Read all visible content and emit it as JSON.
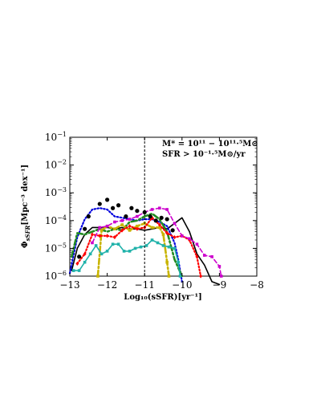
{
  "chart_data": {
    "type": "line",
    "xlabel": "Log₁₀(sSFR)[yr⁻¹]",
    "ylabel": "Φsfr[Mpc⁻³ dex⁻¹]",
    "ylabel_main": "Φ",
    "ylabel_sub": "sSFR",
    "ylabel_rest": "[Mpc⁻³ dex⁻¹]",
    "xlim": [
      -13,
      -8
    ],
    "ylim_log10": [
      -6,
      -1
    ],
    "y_scale": "log",
    "x_ticks": [
      "−13",
      "−12",
      "−11",
      "−10",
      "−9",
      "−8"
    ],
    "x_tick_values": [
      -13,
      -12,
      -11,
      -10,
      -9,
      -8
    ],
    "y_ticks": [
      {
        "value": -6,
        "base": "10",
        "exp": "−6"
      },
      {
        "value": -5,
        "base": "10",
        "exp": "−5"
      },
      {
        "value": -4,
        "base": "10",
        "exp": "−4"
      },
      {
        "value": -3,
        "base": "10",
        "exp": "−3"
      },
      {
        "value": -2,
        "base": "10",
        "exp": "−2"
      },
      {
        "value": -1,
        "base": "10",
        "exp": "−1"
      }
    ],
    "vline_x": -11,
    "annotations": {
      "mass_range": "M* = 10¹¹ − 10¹¹·⁵M⊙",
      "sfr_cut": "SFR > 10⁻¹·⁵M⊙/yr"
    },
    "series": [
      {
        "color": "#000000",
        "style": "solid",
        "marker": "none",
        "x": [
          -12.95,
          -12.8,
          -12.6,
          -12.4,
          -12.2,
          -12.0,
          -11.8,
          -11.6,
          -11.4,
          -11.2,
          -11.0,
          -10.8,
          -10.6,
          -10.4,
          -10.2,
          -10.0,
          -9.8,
          -9.6,
          -9.4,
          -9.2,
          -9.0
        ],
        "log_y": [
          -5.8,
          -5.0,
          -4.5,
          -4.25,
          -4.25,
          -4.25,
          -4.3,
          -4.25,
          -4.3,
          -4.3,
          -4.35,
          -4.3,
          -4.25,
          -4.3,
          -4.1,
          -3.9,
          -4.4,
          -5.2,
          -5.6,
          -6.2,
          -6.3
        ]
      },
      {
        "color": "#0000dd",
        "style": "dotted",
        "marker": "none",
        "x": [
          -13.0,
          -12.8,
          -12.6,
          -12.4,
          -12.2,
          -12.0,
          -11.8,
          -11.6,
          -11.4,
          -11.2,
          -11.0,
          -10.8,
          -10.6,
          -10.4,
          -10.2,
          -10.1,
          -10.0
        ],
        "log_y": [
          -5.9,
          -4.6,
          -3.95,
          -3.6,
          -3.55,
          -3.6,
          -3.85,
          -3.9,
          -3.95,
          -4.0,
          -3.95,
          -3.95,
          -4.05,
          -4.2,
          -4.8,
          -5.4,
          -6.2
        ]
      },
      {
        "color": "#228b22",
        "style": "dashdot",
        "marker": "none",
        "x": [
          -12.95,
          -12.8,
          -12.6,
          -12.4,
          -12.2,
          -12.0,
          -11.8,
          -11.6,
          -11.4,
          -11.2,
          -11.0,
          -10.8,
          -10.6,
          -10.4,
          -10.2,
          -10.0
        ],
        "log_y": [
          -5.3,
          -4.45,
          -4.5,
          -4.4,
          -4.3,
          -4.4,
          -4.3,
          -4.35,
          -4.05,
          -4.0,
          -3.85,
          -3.75,
          -3.95,
          -4.4,
          -5.4,
          -6.0
        ]
      },
      {
        "color": "#c8b400",
        "style": "dashdot",
        "marker": "square",
        "x": [
          -12.25,
          -12.15,
          -12.0,
          -11.8,
          -11.6,
          -11.4,
          -11.2,
          -11.0,
          -10.8,
          -10.6,
          -10.5,
          -10.4,
          -10.35
        ],
        "log_y": [
          -6.0,
          -4.35,
          -4.2,
          -4.3,
          -4.15,
          -4.35,
          -4.2,
          -4.1,
          -4.25,
          -4.25,
          -4.5,
          -5.5,
          -6.0
        ]
      },
      {
        "color": "#ff0000",
        "style": "dotted",
        "marker": "diamond",
        "x": [
          -12.8,
          -12.6,
          -12.4,
          -12.2,
          -12.0,
          -11.8,
          -11.6,
          -11.4,
          -11.2,
          -11.0,
          -10.8,
          -10.6,
          -10.4,
          -10.2,
          -10.0,
          -9.8,
          -9.6,
          -9.5
        ],
        "log_y": [
          -5.55,
          -5.2,
          -4.5,
          -4.55,
          -4.55,
          -4.6,
          -4.35,
          -4.2,
          -4.3,
          -4.25,
          -3.9,
          -4.15,
          -4.45,
          -4.6,
          -4.55,
          -4.7,
          -5.3,
          -6.0
        ]
      },
      {
        "color": "#cc00cc",
        "style": "dashed",
        "marker": "square",
        "x": [
          -12.4,
          -12.2,
          -12.0,
          -11.8,
          -11.6,
          -11.4,
          -11.2,
          -11.0,
          -10.8,
          -10.6,
          -10.4,
          -10.2,
          -10.0,
          -9.8,
          -9.6,
          -9.4,
          -9.2,
          -9.0,
          -8.95
        ],
        "log_y": [
          -4.8,
          -4.25,
          -4.2,
          -4.05,
          -4.0,
          -3.95,
          -3.85,
          -3.7,
          -3.6,
          -3.55,
          -3.6,
          -4.1,
          -4.55,
          -4.65,
          -4.85,
          -5.25,
          -5.3,
          -5.65,
          -6.0
        ]
      },
      {
        "color": "#20b2aa",
        "style": "solid",
        "marker": "square",
        "x": [
          -12.9,
          -12.75,
          -12.6,
          -12.45,
          -12.3,
          -12.15,
          -12.0,
          -11.85,
          -11.7,
          -11.55,
          -11.4,
          -11.25,
          -11.1,
          -10.95,
          -10.8,
          -10.65,
          -10.5,
          -10.35,
          -10.2,
          -10.1,
          -10.05
        ],
        "log_y": [
          -5.8,
          -5.8,
          -5.5,
          -5.2,
          -4.9,
          -5.2,
          -5.1,
          -4.85,
          -4.85,
          -5.1,
          -5.1,
          -5.0,
          -4.95,
          -4.9,
          -4.7,
          -4.8,
          -4.9,
          -4.95,
          -5.0,
          -5.5,
          -6.0
        ]
      }
    ],
    "black_dots": {
      "color": "#000000",
      "x": [
        -12.75,
        -12.6,
        -12.5,
        -12.2,
        -12.0,
        -11.85,
        -11.7,
        -11.5,
        -11.35,
        -11.2,
        -11.0,
        -10.85,
        -10.7,
        -10.55,
        -10.4,
        -10.25
      ],
      "log_y": [
        -5.3,
        -4.3,
        -3.85,
        -3.4,
        -3.25,
        -3.55,
        -3.45,
        -3.85,
        -3.55,
        -3.65,
        -3.7,
        -3.85,
        -4.0,
        -3.9,
        -3.95,
        -4.35
      ]
    }
  }
}
